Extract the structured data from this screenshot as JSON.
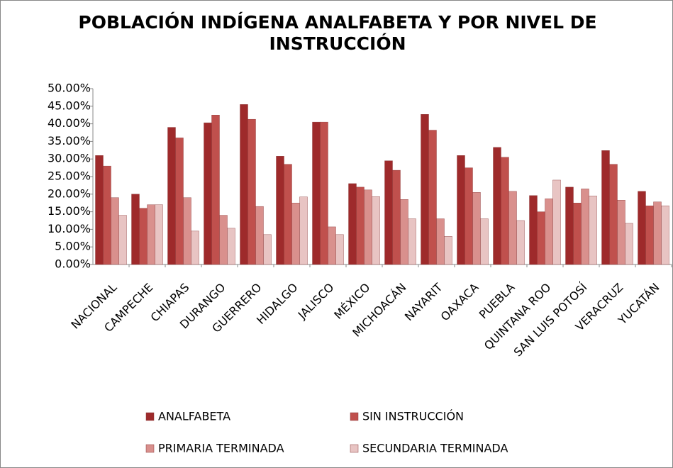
{
  "chart_data": {
    "type": "bar",
    "title": "POBLACIÓN INDÍGENA ANALFABETA Y POR NIVEL DE INSTRUCCIÓN",
    "categories": [
      "NACIONAL",
      "CAMPECHE",
      "CHIAPAS",
      "DURANGO",
      "GUERRERO",
      "HIDALGO",
      "JALISCO",
      "MÉXICO",
      "MICHOACÁN",
      "NAYARIT",
      "OAXACA",
      "PUEBLA",
      "QUINTANA ROO",
      "SAN LUIS POTOSÍ",
      "VERACRUZ",
      "YUCATÁN"
    ],
    "series": [
      {
        "name": "ANALFABETA",
        "color": "#9e2a2b",
        "values": [
          31,
          20,
          39,
          40.3,
          45.5,
          30.8,
          40.5,
          23,
          29.5,
          42.7,
          31,
          33.3,
          19.6,
          22,
          32.4,
          20.8
        ]
      },
      {
        "name": "SIN INSTRUCCIÓN",
        "color": "#c0504d",
        "values": [
          28,
          16,
          36,
          42.5,
          41.3,
          28.5,
          40.5,
          22,
          26.8,
          38.2,
          27.5,
          30.5,
          15,
          17.5,
          28.5,
          16.7
        ]
      },
      {
        "name": "PRIMARIA TERMINADA",
        "color": "#d9908d",
        "values": [
          19,
          17,
          19,
          14,
          16.5,
          17.5,
          10.7,
          21.2,
          18.5,
          13,
          20.5,
          20.8,
          18.7,
          21.5,
          18.3,
          17.8
        ]
      },
      {
        "name": "SECUNDARIA TERMINADA",
        "color": "#e8c4c3",
        "values": [
          14,
          17,
          9.5,
          10.3,
          8.5,
          19.2,
          8.5,
          19.3,
          13,
          8,
          13,
          12.5,
          24,
          19.5,
          11.7,
          16.7
        ]
      }
    ],
    "ylim": [
      0,
      50
    ],
    "yticks": [
      {
        "value": 0,
        "label": "0.00%"
      },
      {
        "value": 5,
        "label": "5.00%"
      },
      {
        "value": 10,
        "label": "10.00%"
      },
      {
        "value": 15,
        "label": "15.00%"
      },
      {
        "value": 20,
        "label": "20.00%"
      },
      {
        "value": 25,
        "label": "25.00%"
      },
      {
        "value": 30,
        "label": "30.00%"
      },
      {
        "value": 35,
        "label": "35.00%"
      },
      {
        "value": 40,
        "label": "40.00%"
      },
      {
        "value": 45,
        "label": "45.00%"
      },
      {
        "value": 50,
        "label": "50.00%"
      }
    ],
    "grid": false,
    "legend": "bottom"
  }
}
